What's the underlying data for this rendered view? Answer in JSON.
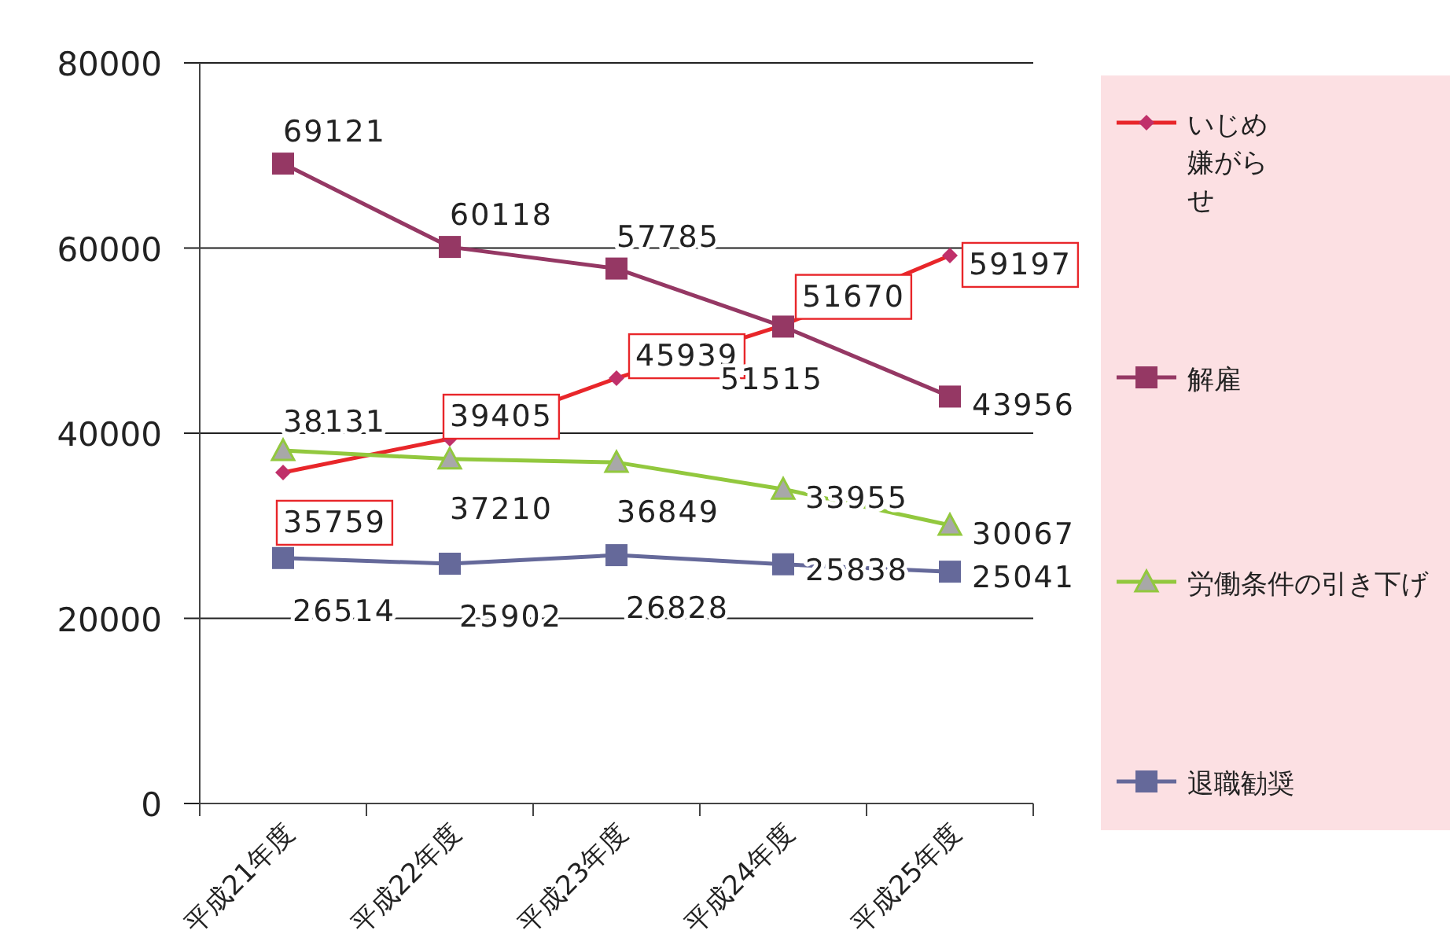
{
  "chart_data": {
    "type": "line",
    "categories": [
      "平成21年度",
      "平成22年度",
      "平成23年度",
      "平成24年度",
      "平成25年度"
    ],
    "series": [
      {
        "name": "いじめ嫌がらせ",
        "color": "#e8262a",
        "marker": "diamond",
        "values": [
          35759,
          39405,
          45939,
          51670,
          59197
        ]
      },
      {
        "name": "解雇",
        "color": "#953864",
        "marker": "square",
        "values": [
          69121,
          60118,
          57785,
          51515,
          43956
        ]
      },
      {
        "name": "労働条件の引き下げ",
        "color": "#92c83e",
        "marker": "triangle",
        "values": [
          38131,
          37210,
          36849,
          33955,
          30067
        ]
      },
      {
        "name": "退職勧奨",
        "color": "#65699a",
        "marker": "square",
        "values": [
          26514,
          25902,
          26828,
          25838,
          25041
        ]
      }
    ],
    "ylim": [
      0,
      80000
    ],
    "yticks": [
      0,
      20000,
      40000,
      60000,
      80000
    ],
    "grid": "y",
    "legend": "right",
    "data_labels": true
  }
}
